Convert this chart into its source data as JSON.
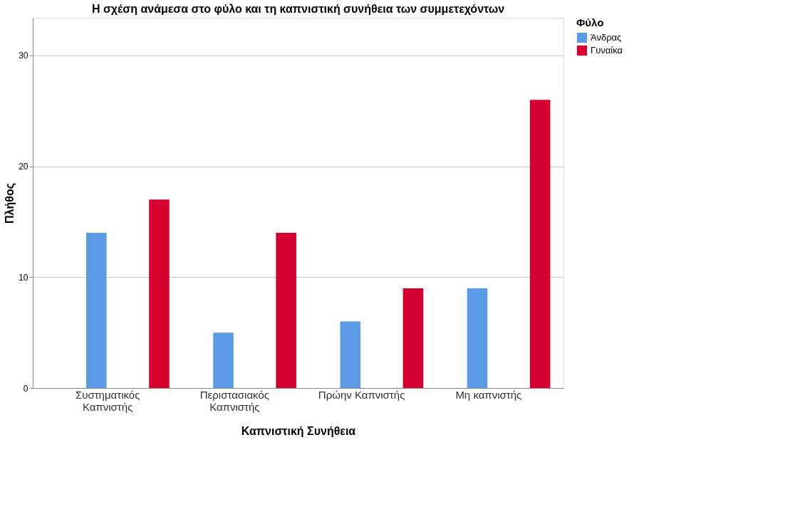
{
  "chart_data": {
    "type": "bar",
    "title": "Η σχέση ανάμεσα στο φύλο και τη καπνιστική συνήθεια των συμμετεχόντων",
    "xlabel": "Καπνιστική Συνήθεια",
    "ylabel": "Πλήθος",
    "legend_title": "Φύλο",
    "categories": [
      "Συστηματικός Καπνιστής",
      "Περιστασιακός Καπνιστής",
      "Πρώην Καπνιστής",
      "Μη καπνιστής"
    ],
    "series": [
      {
        "name": "Άνδρας",
        "color": "#5b9be6",
        "values": [
          14,
          5,
          6,
          9
        ]
      },
      {
        "name": "Γυναίκα",
        "color": "#d5002f",
        "values": [
          17,
          14,
          9,
          26
        ]
      }
    ],
    "ylim": [
      0,
      33.4
    ],
    "yticks": [
      0,
      10,
      20,
      30
    ],
    "grid": "y",
    "legend": "top right"
  }
}
